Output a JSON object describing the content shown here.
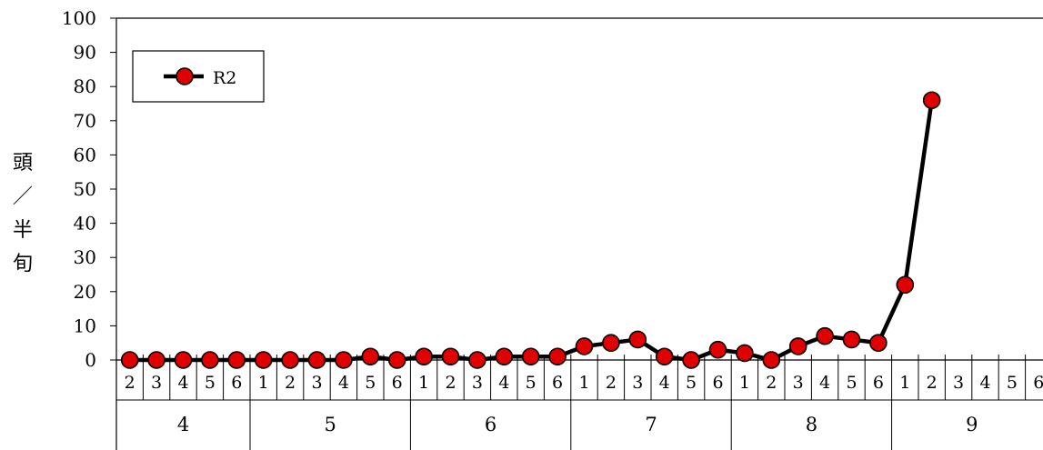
{
  "chart_data": {
    "type": "line",
    "ylabel": "頭／半旬",
    "ylim": [
      0,
      100
    ],
    "y_ticks": [
      "0",
      "10",
      "20",
      "30",
      "40",
      "50",
      "60",
      "70",
      "80",
      "90",
      "100"
    ],
    "months": [
      {
        "label": "4",
        "pentads": [
          "2",
          "3",
          "4",
          "5",
          "6"
        ]
      },
      {
        "label": "5",
        "pentads": [
          "1",
          "2",
          "3",
          "4",
          "5",
          "6"
        ]
      },
      {
        "label": "6",
        "pentads": [
          "1",
          "2",
          "3",
          "4",
          "5",
          "6"
        ]
      },
      {
        "label": "7",
        "pentads": [
          "1",
          "2",
          "3",
          "4",
          "5",
          "6"
        ]
      },
      {
        "label": "8",
        "pentads": [
          "1",
          "2",
          "3",
          "4",
          "5",
          "6"
        ]
      },
      {
        "label": "9",
        "pentads": [
          "1",
          "2",
          "3",
          "4",
          "5",
          "6"
        ]
      }
    ],
    "legend": {
      "position": "top-left"
    },
    "series": [
      {
        "name": "R2",
        "color": "#e00000",
        "line_color": "#000000",
        "values": [
          0,
          0,
          0,
          0,
          0,
          0,
          0,
          0,
          0,
          1,
          0,
          1,
          1,
          0,
          1,
          1,
          1,
          4,
          5,
          6,
          1,
          0,
          3,
          2,
          0,
          4,
          7,
          6,
          5,
          22,
          76
        ]
      }
    ]
  }
}
